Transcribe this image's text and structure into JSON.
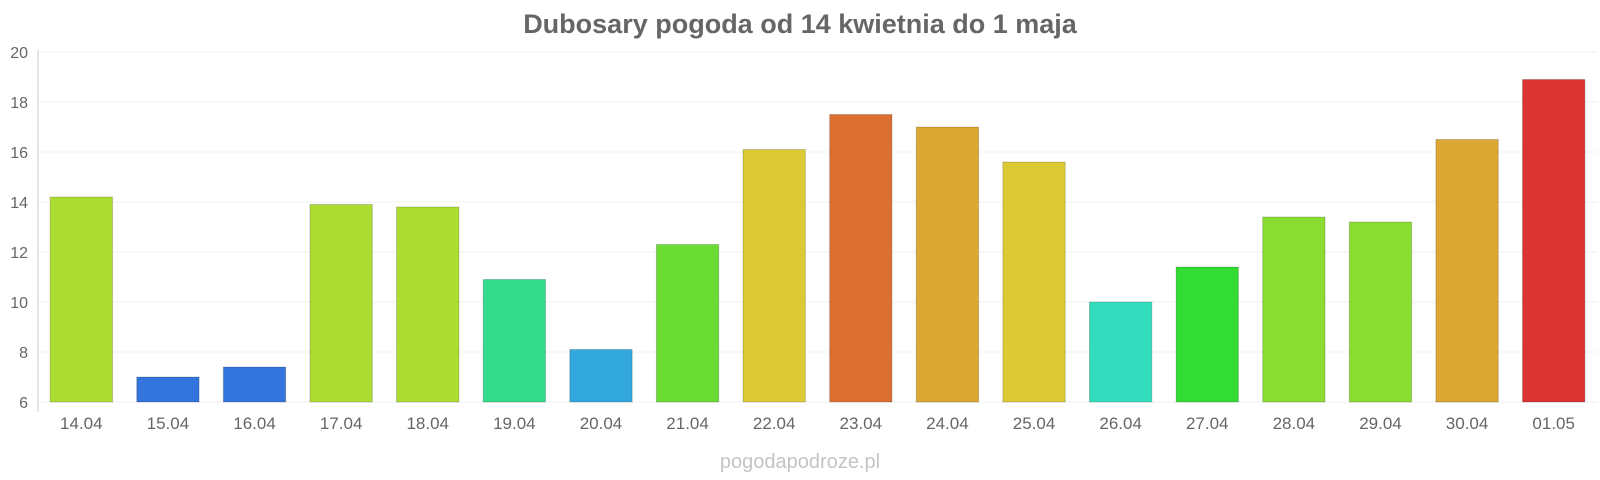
{
  "chart_data": {
    "type": "bar",
    "title": "Dubosary pogoda od 14 kwietnia do 1 maja",
    "xlabel": "",
    "ylabel": "",
    "ylim": [
      6,
      20
    ],
    "yticks": [
      6,
      8,
      10,
      12,
      14,
      16,
      18,
      20
    ],
    "grid": true,
    "legend": "none",
    "categories": [
      "14.04",
      "15.04",
      "16.04",
      "17.04",
      "18.04",
      "19.04",
      "20.04",
      "21.04",
      "22.04",
      "23.04",
      "24.04",
      "25.04",
      "26.04",
      "27.04",
      "28.04",
      "29.04",
      "30.04",
      "01.05"
    ],
    "values": [
      14.2,
      7.0,
      7.4,
      13.9,
      13.8,
      10.9,
      8.1,
      12.3,
      16.1,
      17.5,
      17.0,
      15.6,
      10.0,
      11.4,
      13.4,
      13.2,
      16.5,
      18.9
    ],
    "colors": [
      "#addc33",
      "#3375dc",
      "#3375dc",
      "#addc33",
      "#addc33",
      "#33dc8c",
      "#33a8dc",
      "#6adc33",
      "#dbca33",
      "#dc7033",
      "#dca733",
      "#dbca33",
      "#33dcbc",
      "#33dc33",
      "#8adc33",
      "#8adc33",
      "#dca733",
      "#dc3333"
    ]
  },
  "watermark": "pogodapodroze.pl"
}
